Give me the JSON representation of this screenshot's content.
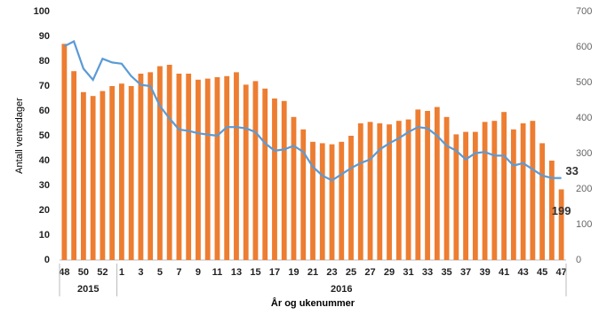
{
  "chart_data": {
    "type": "bar",
    "y_label": "Antall ventedager",
    "x_label": "År og ukenummer",
    "categories": [
      "48",
      null,
      "50",
      null,
      "52",
      null,
      "1",
      null,
      "3",
      null,
      "5",
      null,
      "7",
      null,
      "9",
      null,
      "11",
      null,
      "13",
      null,
      "15",
      null,
      "17",
      null,
      "19",
      null,
      "21",
      null,
      "23",
      null,
      "25",
      null,
      "27",
      null,
      "29",
      null,
      "31",
      null,
      "33",
      null,
      "35",
      null,
      "37",
      null,
      "39",
      null,
      "41",
      null,
      "43",
      null,
      "45",
      null,
      "47"
    ],
    "groups": [
      {
        "label": "2015",
        "span": 6
      },
      {
        "label": "2016",
        "span": 47
      }
    ],
    "series": [
      {
        "type": "bar",
        "axis": "y2",
        "color": "#ed7d31",
        "values": [
          609,
          532,
          473,
          462,
          476,
          490,
          497,
          490,
          525,
          529,
          546,
          550,
          525,
          525,
          508,
          511,
          515,
          518,
          529,
          494,
          504,
          483,
          455,
          448,
          403,
          368,
          333,
          329,
          326,
          333,
          350,
          385,
          389,
          385,
          382,
          392,
          396,
          424,
          420,
          431,
          403,
          354,
          361,
          361,
          389,
          392,
          417,
          368,
          385,
          392,
          329,
          280,
          199
        ]
      },
      {
        "type": "line",
        "color": "#5b9bd5",
        "values": [
          86,
          88,
          77,
          72.5,
          81,
          79.5,
          79,
          74,
          70.5,
          70,
          62,
          57,
          52.5,
          52,
          51,
          50.5,
          50,
          53.5,
          53.5,
          53,
          51.5,
          47,
          44,
          44.5,
          46,
          43.5,
          37.5,
          34,
          32,
          34.5,
          37,
          39,
          40.5,
          44.5,
          47,
          49,
          51.5,
          53.5,
          53,
          50,
          46,
          44,
          40.5,
          43,
          43.5,
          42,
          42,
          38,
          39,
          36.5,
          34,
          33,
          33
        ]
      }
    ],
    "data_labels": "last",
    "ylim": [
      0,
      100
    ],
    "yticks": [
      0,
      10,
      20,
      30,
      40,
      50,
      60,
      70,
      80,
      90,
      100
    ],
    "y2lim": [
      0,
      700
    ],
    "y2ticks": [
      0,
      100,
      200,
      300,
      400,
      500,
      600,
      700
    ],
    "grid": false
  }
}
